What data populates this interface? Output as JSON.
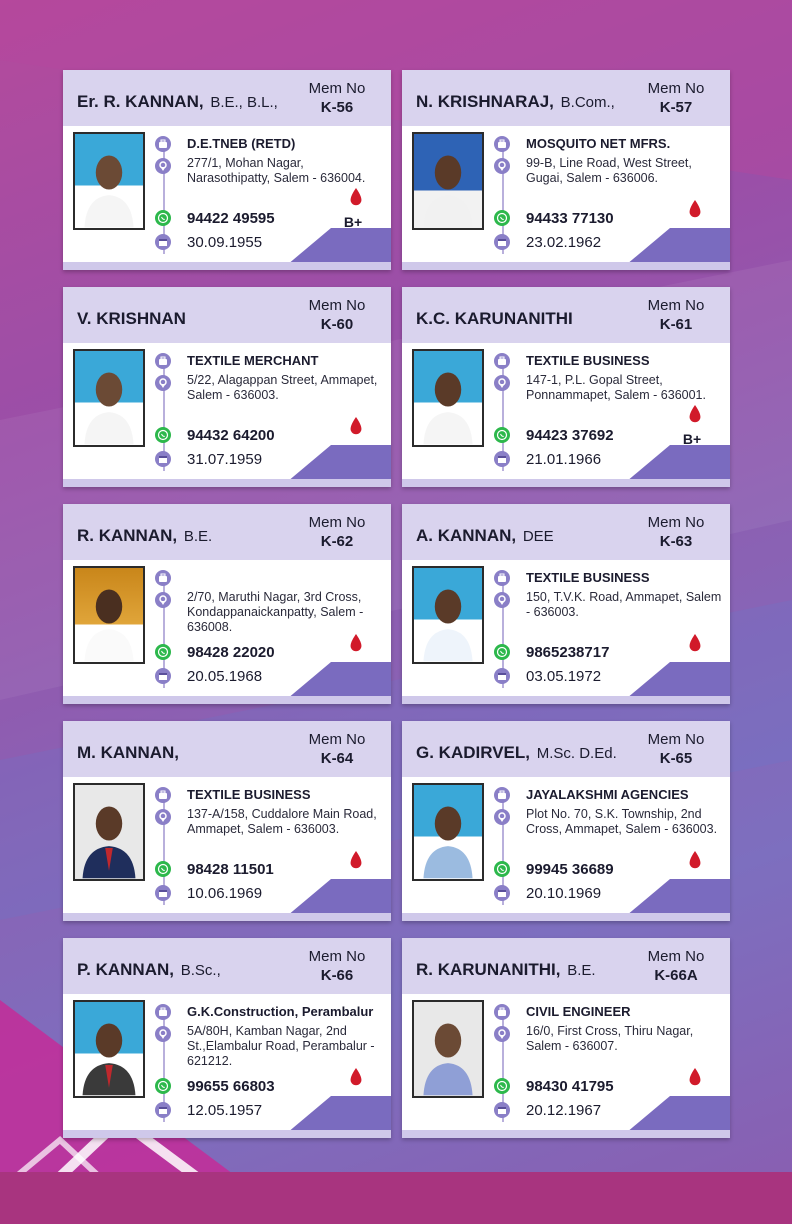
{
  "colors": {
    "header": "#d9d3ee",
    "accent": "#7a6bbf",
    "drop": "#d11a2a",
    "whatsapp": "#2db84c",
    "icon": "#8a7fc7"
  },
  "icons": [
    "briefcase-icon",
    "location-pin-icon",
    "whatsapp-icon",
    "calendar-icon",
    "blood-drop-icon"
  ],
  "cards": [
    {
      "name": "Er. R. KANNAN,",
      "qual": "B.E., B.L.,",
      "mem_label": "Mem No",
      "mem_no": "K-56",
      "occupation": "D.E.TNEB (RETD)",
      "address": "277/1, Mohan Nagar, Narasothipatty, Salem - 636004.",
      "phone": "94422 49595",
      "dob": "30.09.1955",
      "blood": "B+"
    },
    {
      "name": "N. KRISHNARAJ,",
      "qual": "B.Com.,",
      "mem_label": "Mem No",
      "mem_no": "K-57",
      "occupation": "MOSQUITO NET MFRS.",
      "address": "99-B, Line Road, West Street, Gugai, Salem - 636006.",
      "phone": "94433 77130",
      "dob": "23.02.1962",
      "blood": ""
    },
    {
      "name": "V. KRISHNAN",
      "qual": "",
      "mem_label": "Mem No",
      "mem_no": "K-60",
      "occupation": "TEXTILE MERCHANT",
      "address": "5/22, Alagappan Street, Ammapet, Salem - 636003.",
      "phone": "94432 64200",
      "dob": "31.07.1959",
      "blood": ""
    },
    {
      "name": "K.C. KARUNANITHI",
      "qual": "",
      "mem_label": "Mem No",
      "mem_no": "K-61",
      "occupation": "TEXTILE BUSINESS",
      "address": "147-1, P.L. Gopal Street, Ponnammapet, Salem - 636001.",
      "phone": "94423 37692",
      "dob": "21.01.1966",
      "blood": "B+"
    },
    {
      "name": "R. KANNAN,",
      "qual": "B.E.",
      "mem_label": "Mem No",
      "mem_no": "K-62",
      "occupation": "",
      "address": "2/70, Maruthi Nagar,  3rd Cross, Kondappanaickanpatty, Salem - 636008.",
      "phone": "98428 22020",
      "dob": "20.05.1968",
      "blood": ""
    },
    {
      "name": "A. KANNAN,",
      "qual": "DEE",
      "mem_label": "Mem No",
      "mem_no": "K-63",
      "occupation": "TEXTILE BUSINESS",
      "address": "150, T.V.K. Road, Ammapet, Salem - 636003.",
      "phone": "9865238717",
      "dob": "03.05.1972",
      "blood": ""
    },
    {
      "name": "M. KANNAN,",
      "qual": "",
      "mem_label": "Mem No",
      "mem_no": "K-64",
      "occupation": "TEXTILE BUSINESS",
      "address": "137-A/158, Cuddalore Main Road, Ammapet, Salem - 636003.",
      "phone": "98428 11501",
      "dob": "10.06.1969",
      "blood": ""
    },
    {
      "name": "G. KADIRVEL,",
      "qual": "M.Sc.  D.Ed.",
      "mem_label": "Mem No",
      "mem_no": "K-65",
      "occupation": "JAYALAKSHMI AGENCIES",
      "address": "Plot No. 70, S.K. Township, 2nd Cross, Ammapet, Salem - 636003.",
      "phone": "99945 36689",
      "dob": "20.10.1969",
      "blood": ""
    },
    {
      "name": "P. KANNAN,",
      "qual": "B.Sc.,",
      "mem_label": "Mem No",
      "mem_no": "K-66",
      "occupation": "G.K.Construction, Perambalur",
      "address": "5A/80H, Kamban Nagar, 2nd St.,Elambalur Road, Perambalur - 621212.",
      "phone": "99655 66803",
      "dob": "12.05.1957",
      "blood": ""
    },
    {
      "name": "R. KARUNANITHI,",
      "qual": "B.E.",
      "mem_label": "Mem No",
      "mem_no": "K-66A",
      "occupation": "CIVIL ENGINEER",
      "address": "16/0, First Cross, Thiru Nagar, Salem - 636007.",
      "phone": "98430 41795",
      "dob": "20.12.1967",
      "blood": ""
    }
  ]
}
